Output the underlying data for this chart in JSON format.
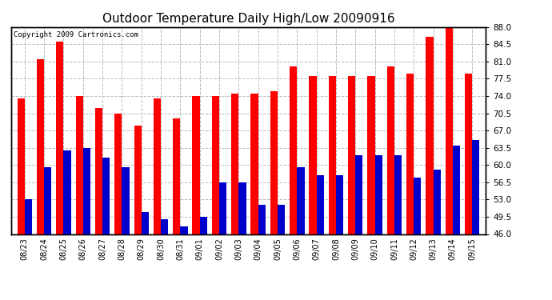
{
  "title": "Outdoor Temperature Daily High/Low 20090916",
  "copyright": "Copyright 2009 Cartronics.com",
  "categories": [
    "08/23",
    "08/24",
    "08/25",
    "08/26",
    "08/27",
    "08/28",
    "08/29",
    "08/30",
    "08/31",
    "09/01",
    "09/02",
    "09/03",
    "09/04",
    "09/05",
    "09/06",
    "09/07",
    "09/08",
    "09/09",
    "09/10",
    "09/11",
    "09/12",
    "09/13",
    "09/14",
    "09/15"
  ],
  "highs": [
    73.5,
    81.5,
    85.0,
    74.0,
    71.5,
    70.5,
    68.0,
    73.5,
    69.5,
    74.0,
    74.0,
    74.5,
    74.5,
    75.0,
    80.0,
    78.0,
    78.0,
    78.0,
    78.0,
    80.0,
    78.5,
    86.0,
    88.0,
    78.5
  ],
  "lows": [
    53.0,
    59.5,
    63.0,
    63.5,
    61.5,
    59.5,
    50.5,
    49.0,
    47.5,
    49.5,
    56.5,
    56.5,
    52.0,
    52.0,
    59.5,
    58.0,
    58.0,
    62.0,
    62.0,
    62.0,
    57.5,
    59.0,
    64.0,
    65.0
  ],
  "high_color": "#ff0000",
  "low_color": "#0000cc",
  "ylim": [
    46.0,
    88.0
  ],
  "yticks": [
    46.0,
    49.5,
    53.0,
    56.5,
    60.0,
    63.5,
    67.0,
    70.5,
    74.0,
    77.5,
    81.0,
    84.5,
    88.0
  ],
  "background_color": "#ffffff",
  "plot_bg_color": "#ffffff",
  "grid_color": "#bbbbbb",
  "title_fontsize": 11,
  "bar_width": 0.38
}
